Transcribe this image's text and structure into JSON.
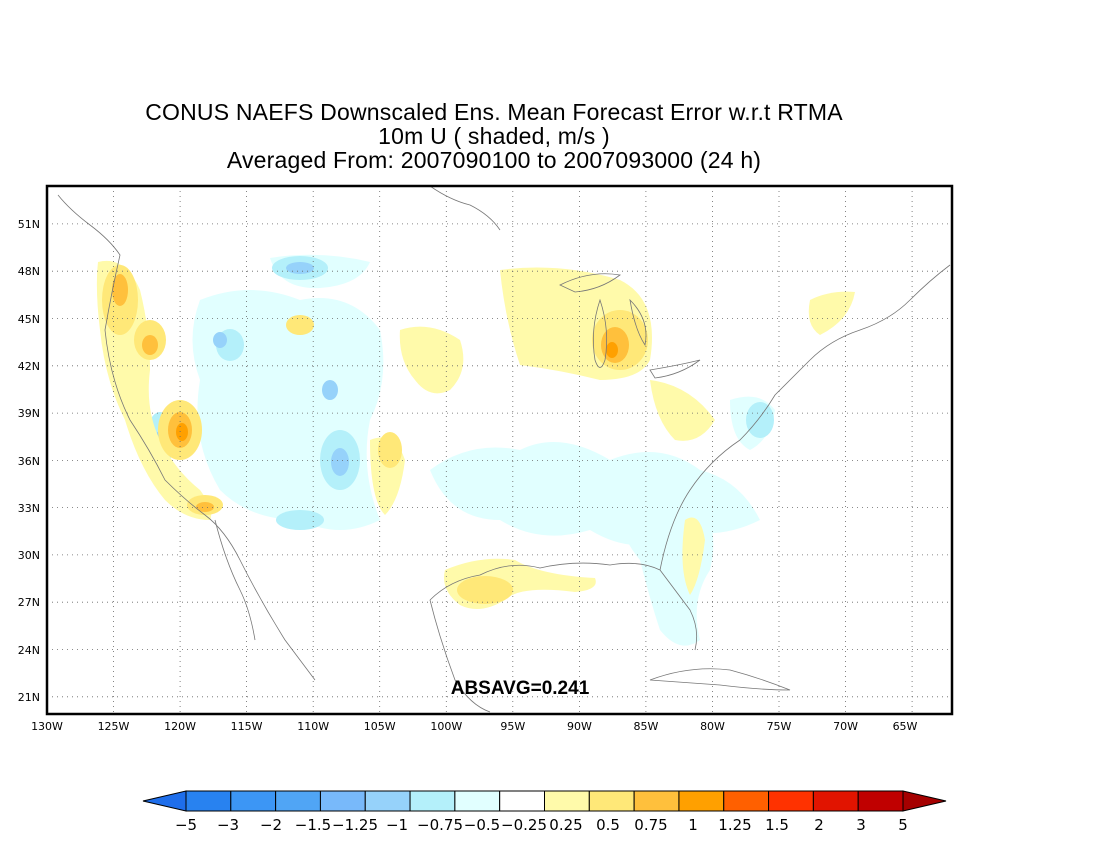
{
  "title": {
    "line1": "CONUS NAEFS Downscaled Ens. Mean Forecast Error w.r.t RTMA",
    "line2": "10m U ( shaded, m/s )",
    "line3": "Averaged From: 2007090100 to 2007093000 (24 h)"
  },
  "map": {
    "lon_range": [
      -130,
      -62
    ],
    "lat_range": [
      19.3,
      52.8
    ],
    "lon_ticks": [
      "130W",
      "125W",
      "120W",
      "115W",
      "110W",
      "105W",
      "100W",
      "95W",
      "90W",
      "85W",
      "80W",
      "75W",
      "70W",
      "65W"
    ],
    "lat_ticks": [
      "51N",
      "48N",
      "45N",
      "42N",
      "39N",
      "36N",
      "33N",
      "30N",
      "27N",
      "24N",
      "21N"
    ],
    "grid": "dotted",
    "annotation": "ABSAVG=0.241"
  },
  "colorbar": {
    "colors": [
      "#1e6eeb",
      "#2882f0",
      "#3c96f5",
      "#50a5f5",
      "#78b9fa",
      "#96d2fa",
      "#b4f0fa",
      "#e1ffff",
      "#ffffff",
      "#fffaaa",
      "#ffe878",
      "#ffc03c",
      "#ffa000",
      "#ff6000",
      "#ff3200",
      "#e11400",
      "#c00000",
      "#a50000"
    ],
    "labels": [
      "−5",
      "−3",
      "−2",
      "−1.5",
      "−1.25",
      "−1",
      "−0.75",
      "−0.5",
      "−0.25",
      "0.25",
      "0.5",
      "0.75",
      "1",
      "1.25",
      "1.5",
      "2",
      "3",
      "5"
    ]
  },
  "colors": {
    "frame": "#000000",
    "coastline": "#777777",
    "grid": "#666666"
  }
}
